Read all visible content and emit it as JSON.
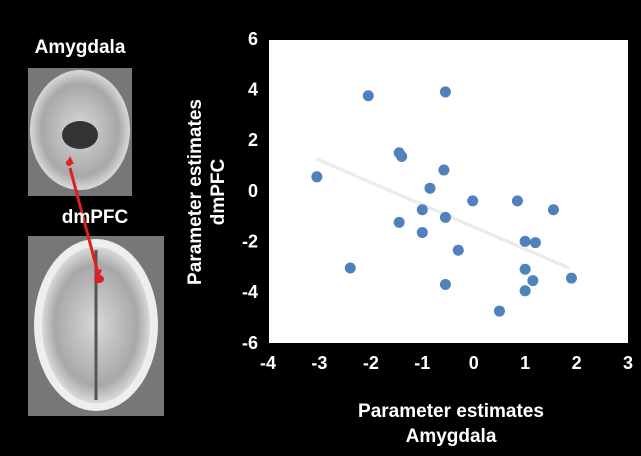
{
  "chart_data": {
    "type": "scatter",
    "xlabel": [
      "Parameter estimates",
      "Amygdala"
    ],
    "ylabel": [
      "Parameter estimates",
      "dmPFC"
    ],
    "panel_labels": [
      "Amygdala",
      "dmPFC"
    ],
    "x": [
      -3.05,
      -2.05,
      -0.55,
      -1.45,
      -1.4,
      -0.58,
      -0.85,
      -0.02,
      0.85,
      1.55,
      -1.0,
      -0.55,
      -1.45,
      -1.0,
      -0.3,
      1.0,
      1.2,
      -2.4,
      1.0,
      1.9,
      1.15,
      -0.55,
      1.0,
      0.5
    ],
    "y": [
      0.6,
      3.8,
      3.95,
      1.55,
      1.4,
      0.87,
      0.15,
      -0.35,
      -0.35,
      -0.7,
      -0.7,
      -1.0,
      -1.2,
      -1.6,
      -2.3,
      -1.95,
      -2.0,
      -3.0,
      -3.05,
      -3.4,
      -3.5,
      -3.65,
      -3.9,
      -4.7
    ],
    "color": "#4f81bd",
    "trend_line": {
      "x": [
        -3.05,
        1.85
      ],
      "y": [
        1.3,
        -3.0
      ],
      "color": "#f2f2f2"
    },
    "xlim": [
      -4,
      3
    ],
    "xticks": [
      -4,
      -3,
      -2,
      -1,
      0,
      1,
      2,
      3
    ],
    "ylim": [
      -6,
      6
    ],
    "yticks": [
      -6,
      -4,
      -2,
      0,
      2,
      4,
      6
    ],
    "plot_background": "#ffffff"
  }
}
